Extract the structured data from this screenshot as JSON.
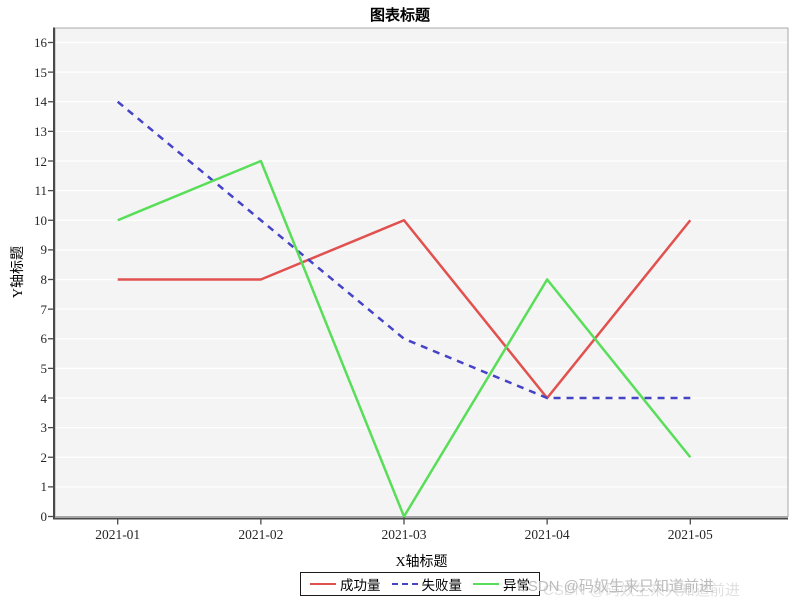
{
  "title": "图表标题",
  "watermark": {
    "text": "CSDN @码奴生来只知道前进"
  },
  "chart_data": {
    "type": "line",
    "title": "图表标题",
    "xlabel": "X轴标题",
    "ylabel": "Y轴标题",
    "categories": [
      "2021-01",
      "2021-02",
      "2021-03",
      "2021-04",
      "2021-05"
    ],
    "series": [
      {
        "name": "成功量",
        "color": "#e0514f",
        "style": "solid",
        "values": [
          8,
          8,
          10,
          4,
          10
        ]
      },
      {
        "name": "失败量",
        "color": "#4543c6",
        "style": "dashed",
        "values": [
          14,
          10,
          6,
          4,
          4
        ]
      },
      {
        "name": "异常",
        "color": "#58de58",
        "style": "solid",
        "values": [
          10,
          12,
          0,
          8,
          2
        ]
      }
    ],
    "ylim": [
      0,
      16
    ],
    "y_tick_step": 1,
    "grid": true,
    "legend_position": "bottom",
    "colors": {
      "plot_background": "#f5f4f4",
      "gridline": "#ffffff",
      "plot_border": "#a8a8a8",
      "axis_line": "#4a4a4a",
      "tick_label": "#262626",
      "watermark": "#bcbcbc"
    }
  }
}
